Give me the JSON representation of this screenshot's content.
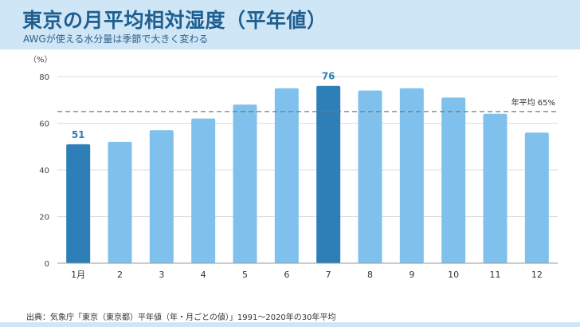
{
  "header": {
    "title": "東京の月平均相対湿度（平年値）",
    "subtitle": "AWGが使える水分量は季節で大きく変わる"
  },
  "footer": {
    "source": "出典：気象庁「東京（東京都）平年値（年・月ごとの値）」1991〜2020年の30年平均"
  },
  "colors": {
    "highlight": "#2e7fb8",
    "bar": "#7fc1ec",
    "header_bg": "#cfe6f7",
    "title": "#1f5f8f",
    "reference_line": "#777777"
  },
  "chart_data": {
    "type": "bar",
    "categories": [
      "1月",
      "2",
      "3",
      "4",
      "5",
      "6",
      "7",
      "8",
      "9",
      "10",
      "11",
      "12"
    ],
    "values": [
      51,
      52,
      57,
      62,
      68,
      75,
      76,
      74,
      75,
      71,
      64,
      56
    ],
    "highlighted": [
      "1月",
      "7"
    ],
    "data_labels": [
      {
        "category": "1月",
        "text": "51"
      },
      {
        "category": "7",
        "text": "76"
      }
    ],
    "ylabel": "（%）",
    "ylim": [
      0,
      80
    ],
    "yticks": [
      0,
      20,
      40,
      60,
      80
    ],
    "grid": true,
    "reference_line": {
      "value": 65,
      "label": "年平均",
      "value_label": "65%"
    }
  }
}
